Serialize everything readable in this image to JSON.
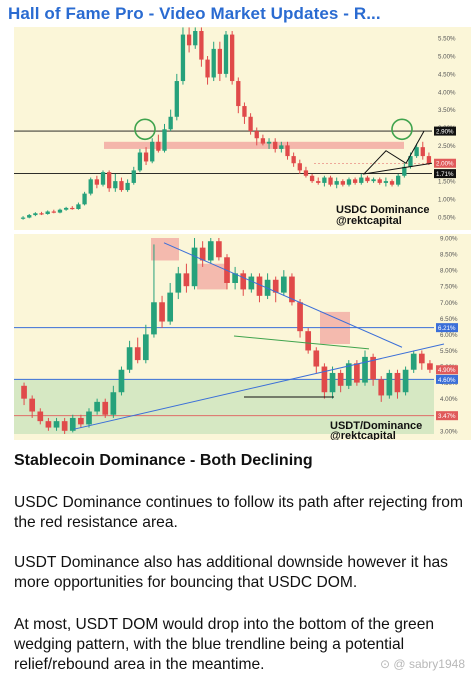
{
  "post": {
    "title": "Hall of Fame Pro - Video Market Updates - R...",
    "heading": "Stablecoin Dominance - Both Declining",
    "paragraphs": [
      "USDC Dominance continues to follow its path after rejecting from the red resistance area.",
      "USDT Dominance also has additional downside however it has more opportunities for bouncing that USDC DOM.",
      "At most, USDT DOM would drop into the bottom of the green wedging pattern, with the blue trendline being a potential relief/rebound area in the meantime."
    ],
    "credit": "sabry1948"
  },
  "chart_data": [
    {
      "type": "candlestick",
      "watermark": [
        "USDC Dominance",
        "@rektcapital"
      ],
      "y_ticks": [
        "5.50%",
        "5.00%",
        "4.50%",
        "4.00%",
        "3.50%",
        "3.00%",
        "2.50%",
        "2.00%",
        "1.50%",
        "1.00%",
        "0.50%"
      ],
      "ylim": [
        0.3,
        5.7
      ],
      "price_tags": [
        {
          "label": "2.90%",
          "value": 2.9,
          "color": "#111111"
        },
        {
          "label": "2.00%",
          "value": 2.0,
          "color": "#e05a5a"
        },
        {
          "label": "1.71%",
          "value": 1.71,
          "color": "#111111"
        }
      ],
      "resistance_zone": [
        2.4,
        2.6
      ],
      "grid": false,
      "candles": [
        [
          0.45,
          0.48,
          0.52,
          0.42
        ],
        [
          0.48,
          0.55,
          0.58,
          0.46
        ],
        [
          0.55,
          0.6,
          0.63,
          0.52
        ],
        [
          0.6,
          0.58,
          0.64,
          0.55
        ],
        [
          0.58,
          0.65,
          0.68,
          0.56
        ],
        [
          0.65,
          0.62,
          0.7,
          0.6
        ],
        [
          0.62,
          0.7,
          0.73,
          0.6
        ],
        [
          0.7,
          0.75,
          0.78,
          0.67
        ],
        [
          0.75,
          0.72,
          0.8,
          0.7
        ],
        [
          0.72,
          0.85,
          0.9,
          0.7
        ],
        [
          0.85,
          1.15,
          1.2,
          0.82
        ],
        [
          1.15,
          1.55,
          1.6,
          1.1
        ],
        [
          1.55,
          1.4,
          1.65,
          1.3
        ],
        [
          1.4,
          1.75,
          1.8,
          1.35
        ],
        [
          1.75,
          1.3,
          1.8,
          1.2
        ],
        [
          1.3,
          1.5,
          1.7,
          1.2
        ],
        [
          1.5,
          1.25,
          1.6,
          1.2
        ],
        [
          1.25,
          1.45,
          1.55,
          1.2
        ],
        [
          1.45,
          1.8,
          1.9,
          1.4
        ],
        [
          1.8,
          2.3,
          2.4,
          1.75
        ],
        [
          2.3,
          2.05,
          2.45,
          1.95
        ],
        [
          2.05,
          2.6,
          2.7,
          2.0
        ],
        [
          2.6,
          2.35,
          2.8,
          2.3
        ],
        [
          2.35,
          2.95,
          3.1,
          2.3
        ],
        [
          2.95,
          3.3,
          3.5,
          2.9
        ],
        [
          3.3,
          4.3,
          4.5,
          3.2
        ],
        [
          4.3,
          5.6,
          5.8,
          4.2
        ],
        [
          5.6,
          5.3,
          5.8,
          5.1
        ],
        [
          5.3,
          5.7,
          5.8,
          5.2
        ],
        [
          5.7,
          4.9,
          5.8,
          4.7
        ],
        [
          4.9,
          4.4,
          5.0,
          4.2
        ],
        [
          4.4,
          5.2,
          5.4,
          4.3
        ],
        [
          5.2,
          4.5,
          5.4,
          4.3
        ],
        [
          4.5,
          5.6,
          5.7,
          4.4
        ],
        [
          5.6,
          4.3,
          5.7,
          4.2
        ],
        [
          4.3,
          3.6,
          4.4,
          3.4
        ],
        [
          3.6,
          3.3,
          3.7,
          3.1
        ],
        [
          3.3,
          2.9,
          3.4,
          2.8
        ],
        [
          2.9,
          2.7,
          3.0,
          2.5
        ],
        [
          2.7,
          2.55,
          2.8,
          2.5
        ],
        [
          2.55,
          2.6,
          2.7,
          2.4
        ],
        [
          2.6,
          2.4,
          2.7,
          2.3
        ],
        [
          2.4,
          2.5,
          2.6,
          2.3
        ],
        [
          2.5,
          2.2,
          2.6,
          2.1
        ],
        [
          2.2,
          2.0,
          2.3,
          1.9
        ],
        [
          2.0,
          1.8,
          2.1,
          1.7
        ],
        [
          1.8,
          1.65,
          1.9,
          1.6
        ],
        [
          1.65,
          1.5,
          1.7,
          1.45
        ],
        [
          1.5,
          1.45,
          1.6,
          1.4
        ],
        [
          1.45,
          1.6,
          1.65,
          1.35
        ],
        [
          1.6,
          1.4,
          1.65,
          1.35
        ],
        [
          1.4,
          1.5,
          1.6,
          1.3
        ],
        [
          1.5,
          1.4,
          1.55,
          1.35
        ],
        [
          1.4,
          1.55,
          1.6,
          1.35
        ],
        [
          1.55,
          1.45,
          1.6,
          1.4
        ],
        [
          1.45,
          1.6,
          1.7,
          1.4
        ],
        [
          1.6,
          1.5,
          1.65,
          1.45
        ],
        [
          1.5,
          1.55,
          1.6,
          1.45
        ],
        [
          1.55,
          1.45,
          1.6,
          1.4
        ],
        [
          1.45,
          1.5,
          1.6,
          1.35
        ],
        [
          1.5,
          1.4,
          1.55,
          1.35
        ],
        [
          1.4,
          1.65,
          1.7,
          1.35
        ],
        [
          1.65,
          1.9,
          2.0,
          1.6
        ],
        [
          1.9,
          2.2,
          2.3,
          1.85
        ],
        [
          2.2,
          2.45,
          2.55,
          2.15
        ],
        [
          2.45,
          2.2,
          2.6,
          2.1
        ],
        [
          2.2,
          2.0,
          2.3,
          1.95
        ]
      ],
      "projection": [
        2.0,
        1.7,
        2.35,
        2.0,
        2.9
      ]
    },
    {
      "type": "candlestick",
      "watermark": [
        "USDT/Dominance",
        "@rektcapital"
      ],
      "y_ticks": [
        "9.00%",
        "8.50%",
        "8.00%",
        "7.50%",
        "7.00%",
        "6.50%",
        "6.00%",
        "5.50%",
        "5.00%",
        "4.50%",
        "4.00%",
        "3.50%",
        "3.00%"
      ],
      "ylim": [
        2.9,
        9.0
      ],
      "price_tags": [
        {
          "label": "6.21%",
          "value": 6.21,
          "color": "#3b6fd8"
        },
        {
          "label": "4.90%",
          "value": 4.9,
          "color": "#e05a5a"
        },
        {
          "label": "4.60%",
          "value": 4.6,
          "color": "#3b6fd8"
        },
        {
          "label": "3.47%",
          "value": 3.47,
          "color": "#e05a5a"
        }
      ],
      "support_zone": [
        2.9,
        4.6
      ],
      "grid": false,
      "candles": [
        [
          4.4,
          4.0,
          4.5,
          3.8
        ],
        [
          4.0,
          3.6,
          4.1,
          3.4
        ],
        [
          3.6,
          3.3,
          3.7,
          3.2
        ],
        [
          3.3,
          3.1,
          3.4,
          3.0
        ],
        [
          3.1,
          3.3,
          3.4,
          3.0
        ],
        [
          3.3,
          3.0,
          3.4,
          2.9
        ],
        [
          3.0,
          3.4,
          3.5,
          2.95
        ],
        [
          3.4,
          3.2,
          3.5,
          3.1
        ],
        [
          3.2,
          3.6,
          3.7,
          3.1
        ],
        [
          3.6,
          3.9,
          4.0,
          3.5
        ],
        [
          3.9,
          3.5,
          4.0,
          3.4
        ],
        [
          3.5,
          4.2,
          4.4,
          3.4
        ],
        [
          4.2,
          4.9,
          5.0,
          4.1
        ],
        [
          4.9,
          5.6,
          5.8,
          4.8
        ],
        [
          5.6,
          5.2,
          5.9,
          5.1
        ],
        [
          5.2,
          6.0,
          6.3,
          5.1
        ],
        [
          6.0,
          7.0,
          8.8,
          5.9
        ],
        [
          7.0,
          6.4,
          7.2,
          6.2
        ],
        [
          6.4,
          7.3,
          7.6,
          6.3
        ],
        [
          7.3,
          7.9,
          8.1,
          7.1
        ],
        [
          7.9,
          7.5,
          8.2,
          7.3
        ],
        [
          7.5,
          8.7,
          9.0,
          7.4
        ],
        [
          8.7,
          8.3,
          8.9,
          8.1
        ],
        [
          8.3,
          8.9,
          9.0,
          8.2
        ],
        [
          8.9,
          8.4,
          9.0,
          8.3
        ],
        [
          8.4,
          7.6,
          8.5,
          7.4
        ],
        [
          7.6,
          7.9,
          8.1,
          7.4
        ],
        [
          7.9,
          7.4,
          8.0,
          7.2
        ],
        [
          7.4,
          7.8,
          7.9,
          7.3
        ],
        [
          7.8,
          7.2,
          7.9,
          7.0
        ],
        [
          7.2,
          7.7,
          7.9,
          7.1
        ],
        [
          7.7,
          7.3,
          7.8,
          7.0
        ],
        [
          7.3,
          7.8,
          8.0,
          7.2
        ],
        [
          7.8,
          7.0,
          7.9,
          6.9
        ],
        [
          7.0,
          6.1,
          7.1,
          5.9
        ],
        [
          6.1,
          5.5,
          6.2,
          5.4
        ],
        [
          5.5,
          5.0,
          5.6,
          4.8
        ],
        [
          5.0,
          4.2,
          5.1,
          4.0
        ],
        [
          4.2,
          4.8,
          5.0,
          4.0
        ],
        [
          4.8,
          4.4,
          4.9,
          4.2
        ],
        [
          4.4,
          5.1,
          5.2,
          4.3
        ],
        [
          5.1,
          4.5,
          5.2,
          4.4
        ],
        [
          4.5,
          5.3,
          5.5,
          4.4
        ],
        [
          5.3,
          4.6,
          5.4,
          4.4
        ],
        [
          4.6,
          4.1,
          4.7,
          3.9
        ],
        [
          4.1,
          4.8,
          4.9,
          4.0
        ],
        [
          4.8,
          4.2,
          4.9,
          4.0
        ],
        [
          4.2,
          4.9,
          5.0,
          4.1
        ],
        [
          4.9,
          5.4,
          5.5,
          4.8
        ],
        [
          5.4,
          5.1,
          5.5,
          4.9
        ],
        [
          5.1,
          4.9,
          5.2,
          4.8
        ]
      ]
    }
  ]
}
